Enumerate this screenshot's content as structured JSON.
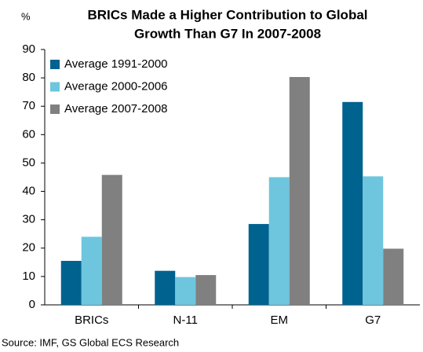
{
  "chart_data": {
    "type": "bar",
    "title": [
      "BRICs Made a Higher Contribution to Global",
      "Growth Than G7 In 2007-2008"
    ],
    "ylabel": "%",
    "source": "Source: IMF, GS Global ECS Research",
    "categories": [
      "BRICs",
      "N-11",
      "EM",
      "G7"
    ],
    "series": [
      {
        "name": "Average 1991-2000",
        "color": "#00628f",
        "values": [
          15.5,
          12,
          28.5,
          71.5
        ]
      },
      {
        "name": "Average 2000-2006",
        "color": "#6ec6de",
        "values": [
          24,
          9.8,
          45,
          45.3
        ]
      },
      {
        "name": "Average 2007-2008",
        "color": "#808080",
        "values": [
          45.8,
          10.5,
          80.3,
          19.8
        ]
      }
    ],
    "ylim": [
      0,
      90
    ],
    "yticks": [
      0,
      10,
      20,
      30,
      40,
      50,
      60,
      70,
      80,
      90
    ],
    "grid": false,
    "legend": "top-left"
  }
}
